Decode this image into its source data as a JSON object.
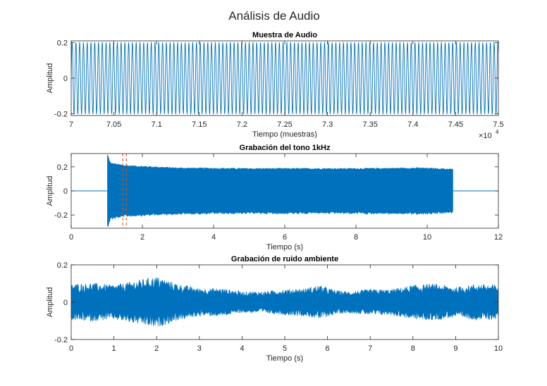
{
  "figure": {
    "title": "Análisis de Audio"
  },
  "colors": {
    "signal": "#0072BD",
    "marker": "#D95319",
    "axis": "#262626"
  },
  "chart_data": [
    {
      "type": "line",
      "title": "Muestra de Audio",
      "xlabel": "Tiempo (muestras)",
      "ylabel": "Amplitud",
      "xlim": [
        70000,
        75000
      ],
      "ylim": [
        -0.21,
        0.21
      ],
      "xticks": [
        70000,
        70500,
        71000,
        71500,
        72000,
        72500,
        73000,
        73500,
        74000,
        74500,
        75000
      ],
      "xtick_labels": [
        "7",
        "7.05",
        "7.1",
        "7.15",
        "7.2",
        "7.25",
        "7.3",
        "7.35",
        "7.4",
        "7.45",
        "7.5"
      ],
      "x_exponent_label": "×10",
      "x_exponent_power": "4",
      "yticks": [
        -0.2,
        0,
        0.2
      ],
      "ytick_labels": [
        "-0.2",
        "0",
        "0.2"
      ],
      "signal": {
        "kind": "sine",
        "amplitude": 0.2,
        "period_samples": 44.1
      },
      "grid": false
    },
    {
      "type": "line",
      "title": "Grabación del tono 1kHz",
      "xlabel": "Tiempo (s)",
      "ylabel": "Amplitud",
      "xlim": [
        0,
        12
      ],
      "ylim": [
        -0.31,
        0.31
      ],
      "xticks": [
        0,
        2,
        4,
        6,
        8,
        10,
        12
      ],
      "xtick_labels": [
        "0",
        "2",
        "4",
        "6",
        "8",
        "10",
        "12"
      ],
      "yticks": [
        -0.2,
        0,
        0.2
      ],
      "ytick_labels": [
        "-0.2",
        "0",
        "0.2"
      ],
      "signal": {
        "kind": "envelope",
        "start": 1.02,
        "end": 10.72,
        "points": [
          [
            1.02,
            0.3
          ],
          [
            1.1,
            0.23
          ],
          [
            1.5,
            0.21
          ],
          [
            3,
            0.19
          ],
          [
            5,
            0.185
          ],
          [
            8,
            0.185
          ],
          [
            9.8,
            0.19
          ],
          [
            10.72,
            0.18
          ]
        ]
      },
      "markers": [
        1.45,
        1.55
      ],
      "grid": false
    },
    {
      "type": "line",
      "title": "Grabación de ruido ambiente",
      "xlabel": "Tiempo (s)",
      "ylabel": "Amplitud",
      "xlim": [
        0,
        10
      ],
      "ylim": [
        -0.2,
        0.2
      ],
      "xticks": [
        0,
        1,
        2,
        3,
        4,
        5,
        6,
        7,
        8,
        9,
        10
      ],
      "xtick_labels": [
        "0",
        "1",
        "2",
        "3",
        "4",
        "5",
        "6",
        "7",
        "8",
        "9",
        "10"
      ],
      "yticks": [
        -0.2,
        0,
        0.2
      ],
      "ytick_labels": [
        "-0.2",
        "0",
        "0.2"
      ],
      "signal": {
        "kind": "noise",
        "points": [
          [
            0,
            0.085
          ],
          [
            0.5,
            0.09
          ],
          [
            1,
            0.08
          ],
          [
            1.5,
            0.1
          ],
          [
            2,
            0.12
          ],
          [
            2.5,
            0.085
          ],
          [
            3,
            0.065
          ],
          [
            3.5,
            0.065
          ],
          [
            4,
            0.05
          ],
          [
            4.5,
            0.05
          ],
          [
            5,
            0.06
          ],
          [
            5.5,
            0.065
          ],
          [
            5.8,
            0.08
          ],
          [
            6.2,
            0.055
          ],
          [
            6.5,
            0.05
          ],
          [
            7,
            0.06
          ],
          [
            7.5,
            0.06
          ],
          [
            8,
            0.08
          ],
          [
            8.5,
            0.085
          ],
          [
            9,
            0.07
          ],
          [
            9.5,
            0.085
          ],
          [
            10,
            0.08
          ]
        ]
      },
      "grid": false
    }
  ]
}
